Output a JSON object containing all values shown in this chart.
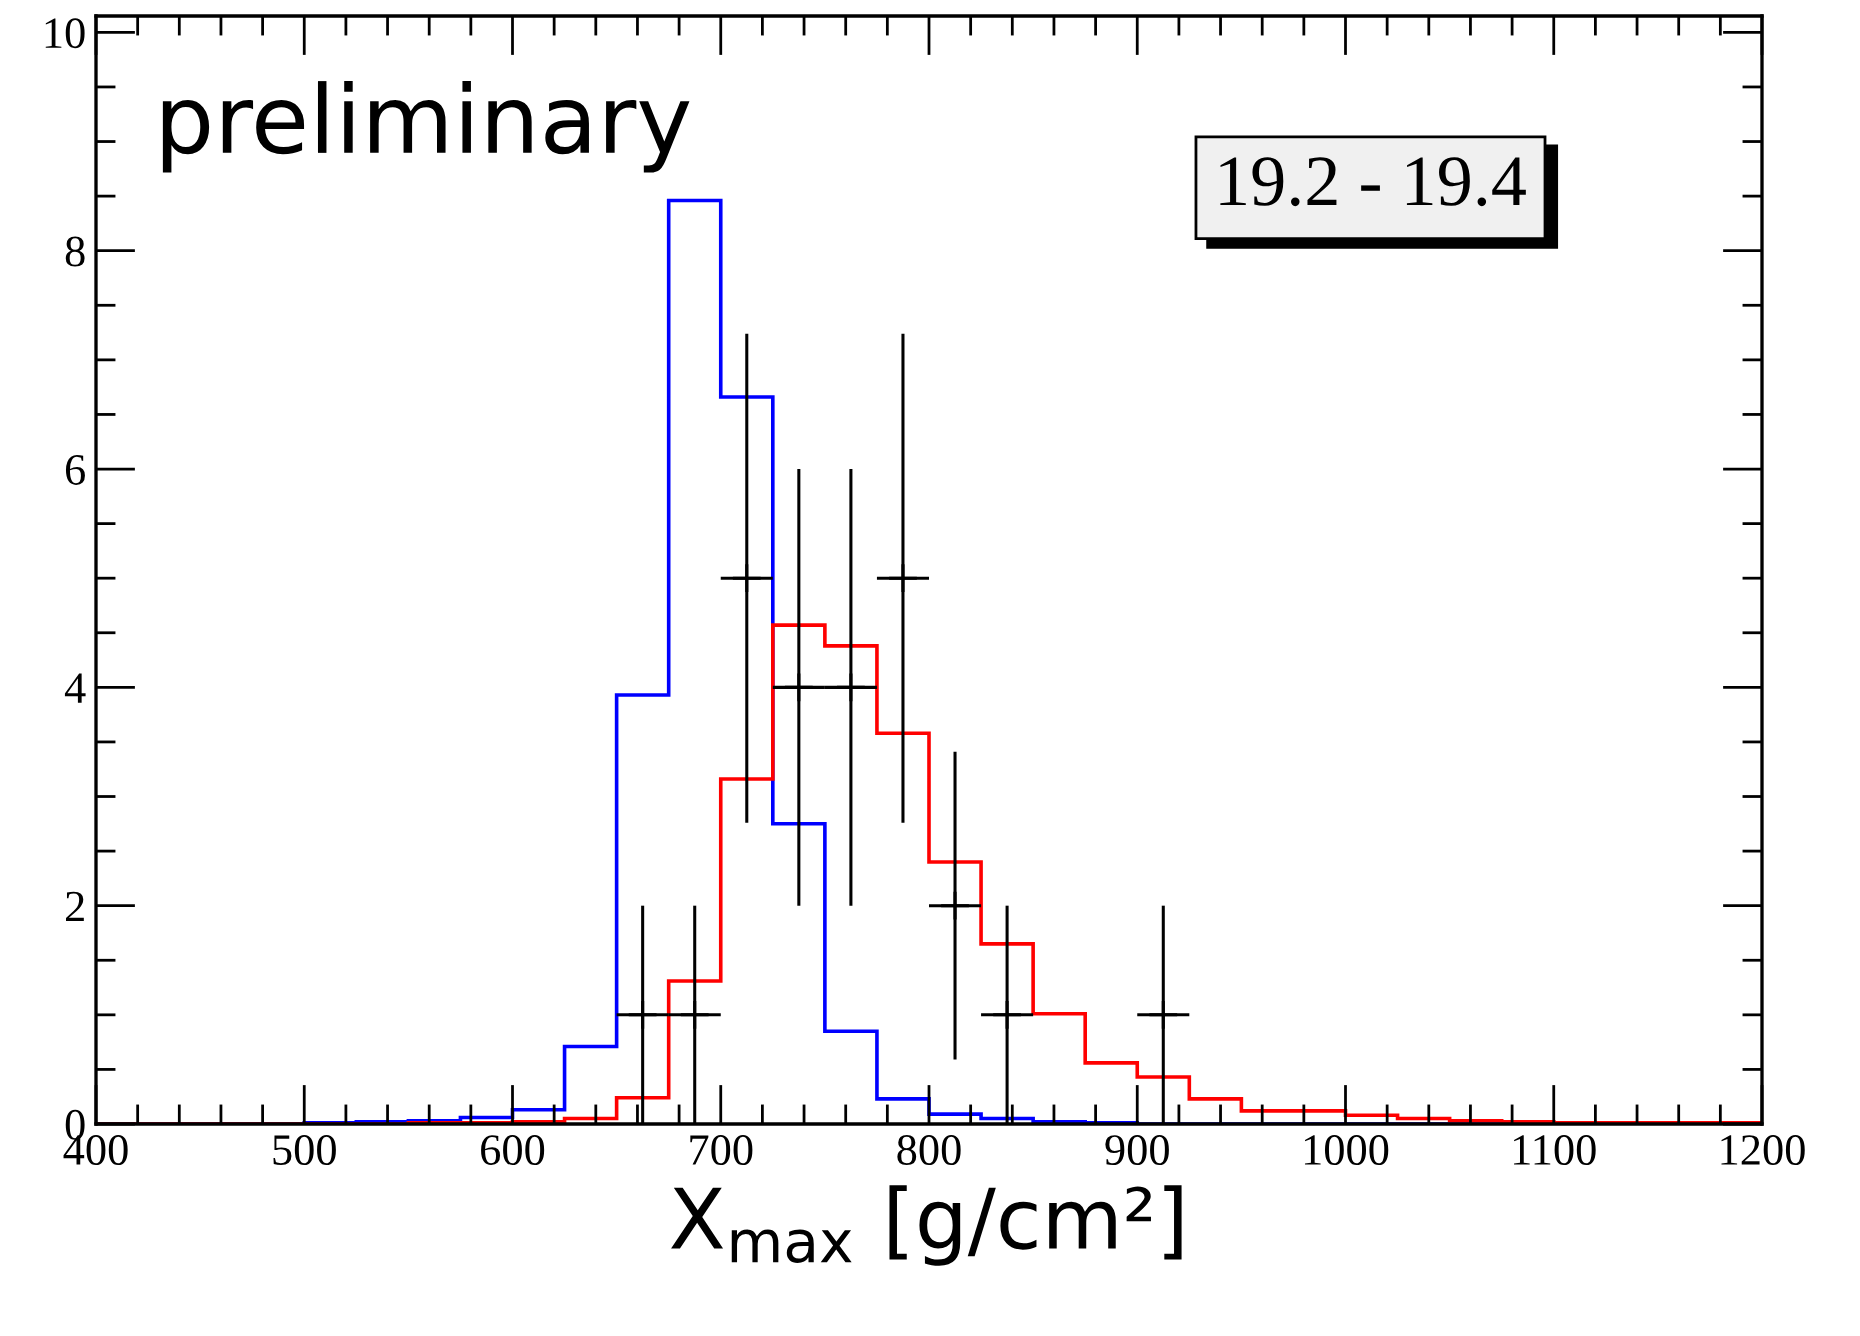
{
  "chart_data": {
    "type": "histogram",
    "xlabel": "X$_{max}$ [g/cm²]",
    "bins": [
      400,
      425,
      450,
      475,
      500,
      525,
      550,
      575,
      600,
      625,
      650,
      675,
      700,
      725,
      750,
      775,
      800,
      825,
      850,
      875,
      900,
      925,
      950,
      975,
      1000,
      1025,
      1050,
      1075,
      1100,
      1125,
      1150,
      1175,
      1200
    ],
    "series": [
      {
        "color": "#0000ff",
        "values": [
          0,
          0,
          0,
          0,
          0.01,
          0.02,
          0.03,
          0.06,
          0.13,
          0.71,
          3.93,
          8.46,
          6.66,
          2.75,
          0.85,
          0.23,
          0.09,
          0.05,
          0.02,
          0.01,
          0,
          0,
          0,
          0,
          0,
          0,
          0,
          0,
          0,
          0,
          0,
          0
        ]
      },
      {
        "color": "#ff0000",
        "values": [
          0,
          0,
          0,
          0,
          0,
          0,
          0.01,
          0.01,
          0.02,
          0.05,
          0.24,
          1.31,
          3.16,
          4.57,
          4.38,
          3.58,
          2.4,
          1.65,
          1.01,
          0.56,
          0.43,
          0.23,
          0.12,
          0.12,
          0.08,
          0.05,
          0.03,
          0.02,
          0.01,
          0.01,
          0.01,
          0.01
        ]
      },
      {
        "type": "scatter",
        "color": "#000000",
        "marker": "cross",
        "x": [
          662.5,
          687.5,
          712.5,
          737.5,
          762.5,
          787.5,
          812.5,
          837.5,
          912.5
        ],
        "values": [
          1,
          1,
          5,
          4,
          4,
          5,
          2,
          1,
          1
        ],
        "errors": [
          1,
          1,
          2.24,
          2,
          2,
          2.24,
          1.41,
          1,
          1
        ],
        "xerrors": [
          12.5,
          12.5,
          12.5,
          12.5,
          12.5,
          12.5,
          12.5,
          12.5,
          12.5
        ]
      }
    ],
    "xlim": [
      400,
      1200
    ],
    "xticks": [
      400,
      500,
      600,
      700,
      800,
      900,
      1000,
      1100,
      1200
    ],
    "ylim": [
      0,
      10.15
    ],
    "yticks": [
      0,
      2,
      4,
      6,
      8,
      10
    ],
    "grid": false,
    "legend": false,
    "annotations": [
      "preliminary",
      "19.2 - 19.4"
    ]
  }
}
